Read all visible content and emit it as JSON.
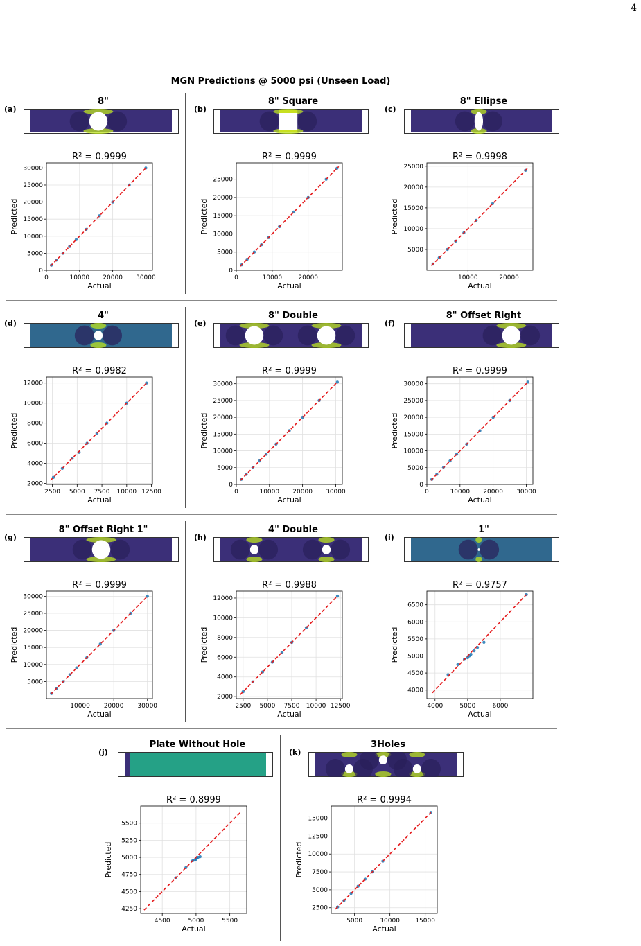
{
  "page_number": "4",
  "main_title": "MGN Predictions @ 5000 psi (Unseen Load)",
  "colors": {
    "identity_line": "#e41a1c",
    "points": "#1f77b4",
    "grid": "#e0e0e0",
    "plate_bg": "#3b2f78"
  },
  "chart_data": [
    {
      "label": "(a)",
      "title": "8\"",
      "type": "scatter",
      "r2": "R² = 0.9999",
      "xlabel": "Actual",
      "ylabel": "Predicted",
      "xlim": [
        0,
        32000
      ],
      "ylim": [
        0,
        31500
      ],
      "xticks": [
        0,
        10000,
        20000,
        30000
      ],
      "yticks": [
        0,
        5000,
        10000,
        15000,
        20000,
        25000,
        30000
      ],
      "line": [
        [
          1200,
          1200
        ],
        [
          30000,
          30000
        ]
      ],
      "points": [
        [
          1500,
          1500
        ],
        [
          3000,
          3000
        ],
        [
          5000,
          5000
        ],
        [
          7000,
          7000
        ],
        [
          9000,
          9000
        ],
        [
          12000,
          12000
        ],
        [
          16000,
          16000
        ],
        [
          20000,
          20000
        ],
        [
          25000,
          25000
        ],
        [
          30000,
          30000
        ]
      ],
      "plate": {
        "holes": [
          {
            "cx": 0.48,
            "cy": 0.5,
            "rx": 0.065,
            "ry": 0.42
          }
        ],
        "theme": "dark"
      }
    },
    {
      "label": "(b)",
      "title": "8\" Square",
      "type": "scatter",
      "r2": "R² = 0.9999",
      "xlabel": "Actual",
      "ylabel": "Predicted",
      "xlim": [
        0,
        29500
      ],
      "ylim": [
        0,
        29500
      ],
      "xticks": [
        0,
        10000,
        20000
      ],
      "yticks": [
        0,
        5000,
        10000,
        15000,
        20000,
        25000
      ],
      "line": [
        [
          1100,
          1100
        ],
        [
          28500,
          28500
        ]
      ],
      "points": [
        [
          1500,
          1500
        ],
        [
          3000,
          3000
        ],
        [
          5000,
          5000
        ],
        [
          7000,
          7000
        ],
        [
          9000,
          9000
        ],
        [
          12000,
          12000
        ],
        [
          16000,
          16000
        ],
        [
          20000,
          20000
        ],
        [
          25000,
          25000
        ],
        [
          28000,
          28000
        ]
      ],
      "plate": {
        "holes": [
          {
            "cx": 0.48,
            "cy": 0.5,
            "rx": 0.065,
            "ry": 0.42,
            "shape": "square"
          }
        ],
        "theme": "dark"
      }
    },
    {
      "label": "(c)",
      "title": "8\" Ellipse",
      "type": "scatter",
      "r2": "R² = 0.9998",
      "xlabel": "Actual",
      "ylabel": "Predicted",
      "xlim": [
        0,
        25800
      ],
      "ylim": [
        0,
        25800
      ],
      "xticks": [
        10000,
        20000
      ],
      "yticks": [
        5000,
        10000,
        15000,
        20000,
        25000
      ],
      "line": [
        [
          1100,
          1100
        ],
        [
          24500,
          24500
        ]
      ],
      "points": [
        [
          1500,
          1500
        ],
        [
          3000,
          3000
        ],
        [
          5000,
          5000
        ],
        [
          7000,
          7000
        ],
        [
          9000,
          9000
        ],
        [
          12000,
          12000
        ],
        [
          16000,
          16000
        ],
        [
          24000,
          24000
        ]
      ],
      "plate": {
        "holes": [
          {
            "cx": 0.48,
            "cy": 0.5,
            "rx": 0.03,
            "ry": 0.42
          }
        ],
        "theme": "dark"
      }
    },
    {
      "label": "(d)",
      "title": "4\"",
      "type": "scatter",
      "r2": "R² = 0.9982",
      "xlabel": "Actual",
      "ylabel": "Predicted",
      "xlim": [
        1900,
        12600
      ],
      "ylim": [
        1900,
        12600
      ],
      "xticks": [
        2500,
        5000,
        7500,
        10000,
        12500
      ],
      "yticks": [
        2000,
        4000,
        6000,
        8000,
        10000,
        12000
      ],
      "line": [
        [
          2300,
          2300
        ],
        [
          12000,
          12000
        ]
      ],
      "points": [
        [
          2600,
          2600
        ],
        [
          3500,
          3500
        ],
        [
          4500,
          4500
        ],
        [
          5200,
          5100
        ],
        [
          6000,
          6000
        ],
        [
          7000,
          7000
        ],
        [
          8000,
          8000
        ],
        [
          10000,
          10000
        ],
        [
          12000,
          12000
        ]
      ],
      "plate": {
        "holes": [
          {
            "cx": 0.48,
            "cy": 0.5,
            "rx": 0.03,
            "ry": 0.22
          }
        ],
        "theme": "teal"
      }
    },
    {
      "label": "(e)",
      "title": "8\" Double",
      "type": "scatter",
      "r2": "R² = 0.9999",
      "xlabel": "Actual",
      "ylabel": "Predicted",
      "xlim": [
        0,
        32000
      ],
      "ylim": [
        0,
        32000
      ],
      "xticks": [
        0,
        10000,
        20000,
        30000
      ],
      "yticks": [
        0,
        5000,
        10000,
        15000,
        20000,
        25000,
        30000
      ],
      "line": [
        [
          1200,
          1200
        ],
        [
          30500,
          30500
        ]
      ],
      "points": [
        [
          1500,
          1500
        ],
        [
          3000,
          3000
        ],
        [
          5000,
          5000
        ],
        [
          7000,
          7000
        ],
        [
          9000,
          9000
        ],
        [
          12000,
          12000
        ],
        [
          16000,
          16000
        ],
        [
          20000,
          20000
        ],
        [
          25000,
          25000
        ],
        [
          30500,
          30500
        ]
      ],
      "plate": {
        "holes": [
          {
            "cx": 0.24,
            "cy": 0.5,
            "rx": 0.065,
            "ry": 0.42
          },
          {
            "cx": 0.75,
            "cy": 0.5,
            "rx": 0.065,
            "ry": 0.42
          }
        ],
        "theme": "dark"
      }
    },
    {
      "label": "(f)",
      "title": "8\" Offset Right",
      "type": "scatter",
      "r2": "R² = 0.9999",
      "xlabel": "Actual",
      "ylabel": "Predicted",
      "xlim": [
        0,
        32000
      ],
      "ylim": [
        0,
        32000
      ],
      "xticks": [
        0,
        10000,
        20000,
        30000
      ],
      "yticks": [
        0,
        5000,
        10000,
        15000,
        20000,
        25000,
        30000
      ],
      "line": [
        [
          1200,
          1200
        ],
        [
          30500,
          30500
        ]
      ],
      "points": [
        [
          1500,
          1500
        ],
        [
          3000,
          3000
        ],
        [
          5000,
          5000
        ],
        [
          7000,
          7000
        ],
        [
          9000,
          9000
        ],
        [
          12000,
          12000
        ],
        [
          16000,
          16000
        ],
        [
          20000,
          20000
        ],
        [
          25000,
          25000
        ],
        [
          30500,
          30500
        ]
      ],
      "plate": {
        "holes": [
          {
            "cx": 0.71,
            "cy": 0.5,
            "rx": 0.065,
            "ry": 0.42
          }
        ],
        "theme": "dark"
      }
    },
    {
      "label": "(g)",
      "title": "8\" Offset Right 1\"",
      "type": "scatter",
      "r2": "R² = 0.9999",
      "xlabel": "Actual",
      "ylabel": "Predicted",
      "xlim": [
        0,
        31500
      ],
      "ylim": [
        0,
        31500
      ],
      "xticks": [
        10000,
        20000,
        30000
      ],
      "yticks": [
        5000,
        10000,
        15000,
        20000,
        25000,
        30000
      ],
      "line": [
        [
          1200,
          1200
        ],
        [
          30000,
          30000
        ]
      ],
      "points": [
        [
          1500,
          1500
        ],
        [
          3000,
          3000
        ],
        [
          5000,
          5000
        ],
        [
          7000,
          7000
        ],
        [
          9000,
          9000
        ],
        [
          12000,
          12000
        ],
        [
          16000,
          16000
        ],
        [
          20000,
          20000
        ],
        [
          25000,
          25000
        ],
        [
          30000,
          30000
        ]
      ],
      "plate": {
        "holes": [
          {
            "cx": 0.5,
            "cy": 0.5,
            "rx": 0.065,
            "ry": 0.42
          }
        ],
        "theme": "dark"
      }
    },
    {
      "label": "(h)",
      "title": "4\" Double",
      "type": "scatter",
      "r2": "R² = 0.9988",
      "xlabel": "Actual",
      "ylabel": "Predicted",
      "xlim": [
        1800,
        12700
      ],
      "ylim": [
        1800,
        12700
      ],
      "xticks": [
        2500,
        5000,
        7500,
        10000,
        12500
      ],
      "yticks": [
        2000,
        4000,
        6000,
        8000,
        10000,
        12000
      ],
      "line": [
        [
          2200,
          2200
        ],
        [
          12200,
          12200
        ]
      ],
      "points": [
        [
          2500,
          2500
        ],
        [
          3500,
          3500
        ],
        [
          4500,
          4500
        ],
        [
          5500,
          5500
        ],
        [
          6500,
          6500
        ],
        [
          7500,
          7500
        ],
        [
          9000,
          9000
        ],
        [
          12200,
          12200
        ]
      ],
      "plate": {
        "holes": [
          {
            "cx": 0.24,
            "cy": 0.5,
            "rx": 0.03,
            "ry": 0.22
          },
          {
            "cx": 0.75,
            "cy": 0.5,
            "rx": 0.03,
            "ry": 0.22
          }
        ],
        "theme": "dark"
      }
    },
    {
      "label": "(i)",
      "title": "1\"",
      "type": "scatter",
      "r2": "R² = 0.9757",
      "xlabel": "Actual",
      "ylabel": "Predicted",
      "xlim": [
        3750,
        7000
      ],
      "ylim": [
        3750,
        6900
      ],
      "xticks": [
        4000,
        5000,
        6000
      ],
      "yticks": [
        4000,
        4500,
        5000,
        5500,
        6000,
        6500
      ],
      "line": [
        [
          3920,
          3920
        ],
        [
          6800,
          6800
        ]
      ],
      "points": [
        [
          4400,
          4450
        ],
        [
          4700,
          4750
        ],
        [
          4900,
          4900
        ],
        [
          5000,
          4950
        ],
        [
          5050,
          5000
        ],
        [
          5100,
          5050
        ],
        [
          5200,
          5150
        ],
        [
          5300,
          5250
        ],
        [
          5500,
          5400
        ],
        [
          6800,
          6800
        ]
      ],
      "plate": {
        "holes": [
          {
            "cx": 0.48,
            "cy": 0.5,
            "rx": 0.006,
            "ry": 0.06
          }
        ],
        "theme": "teal"
      }
    },
    {
      "label": "(j)",
      "title": "Plate Without Hole",
      "type": "scatter",
      "r2": "R² = 0.8999",
      "xlabel": "Actual",
      "ylabel": "Predicted",
      "xlim": [
        4180,
        5750
      ],
      "ylim": [
        4180,
        5750
      ],
      "xticks": [
        4500,
        5000,
        5500
      ],
      "yticks": [
        4250,
        4500,
        4750,
        5000,
        5250,
        5500
      ],
      "line": [
        [
          4230,
          4230
        ],
        [
          5660,
          5660
        ]
      ],
      "points": [
        [
          4700,
          4700
        ],
        [
          4850,
          4850
        ],
        [
          4950,
          4950
        ],
        [
          5000,
          4970
        ],
        [
          5030,
          5000
        ],
        [
          5060,
          5010
        ],
        [
          4980,
          4960
        ],
        [
          5010,
          4990
        ]
      ],
      "plate": {
        "holes": [],
        "theme": "green"
      }
    },
    {
      "label": "(k)",
      "title": "3Holes",
      "type": "scatter",
      "r2": "R² = 0.9994",
      "xlabel": "Actual",
      "ylabel": "Predicted",
      "xlim": [
        1700,
        16700
      ],
      "ylim": [
        1700,
        16700
      ],
      "xticks": [
        5000,
        10000,
        15000
      ],
      "yticks": [
        2500,
        5000,
        7500,
        10000,
        12500,
        15000
      ],
      "line": [
        [
          2300,
          2300
        ],
        [
          15800,
          15800
        ]
      ],
      "points": [
        [
          2600,
          2600
        ],
        [
          3500,
          3500
        ],
        [
          4500,
          4500
        ],
        [
          5500,
          5500
        ],
        [
          6500,
          6500
        ],
        [
          7500,
          7500
        ],
        [
          9000,
          9000
        ],
        [
          15800,
          15800
        ]
      ],
      "plate": {
        "holes": [
          {
            "cx": 0.24,
            "cy": 0.7,
            "rx": 0.03,
            "ry": 0.2
          },
          {
            "cx": 0.48,
            "cy": 0.3,
            "rx": 0.03,
            "ry": 0.2
          },
          {
            "cx": 0.72,
            "cy": 0.7,
            "rx": 0.03,
            "ry": 0.2
          }
        ],
        "theme": "dark"
      }
    }
  ]
}
